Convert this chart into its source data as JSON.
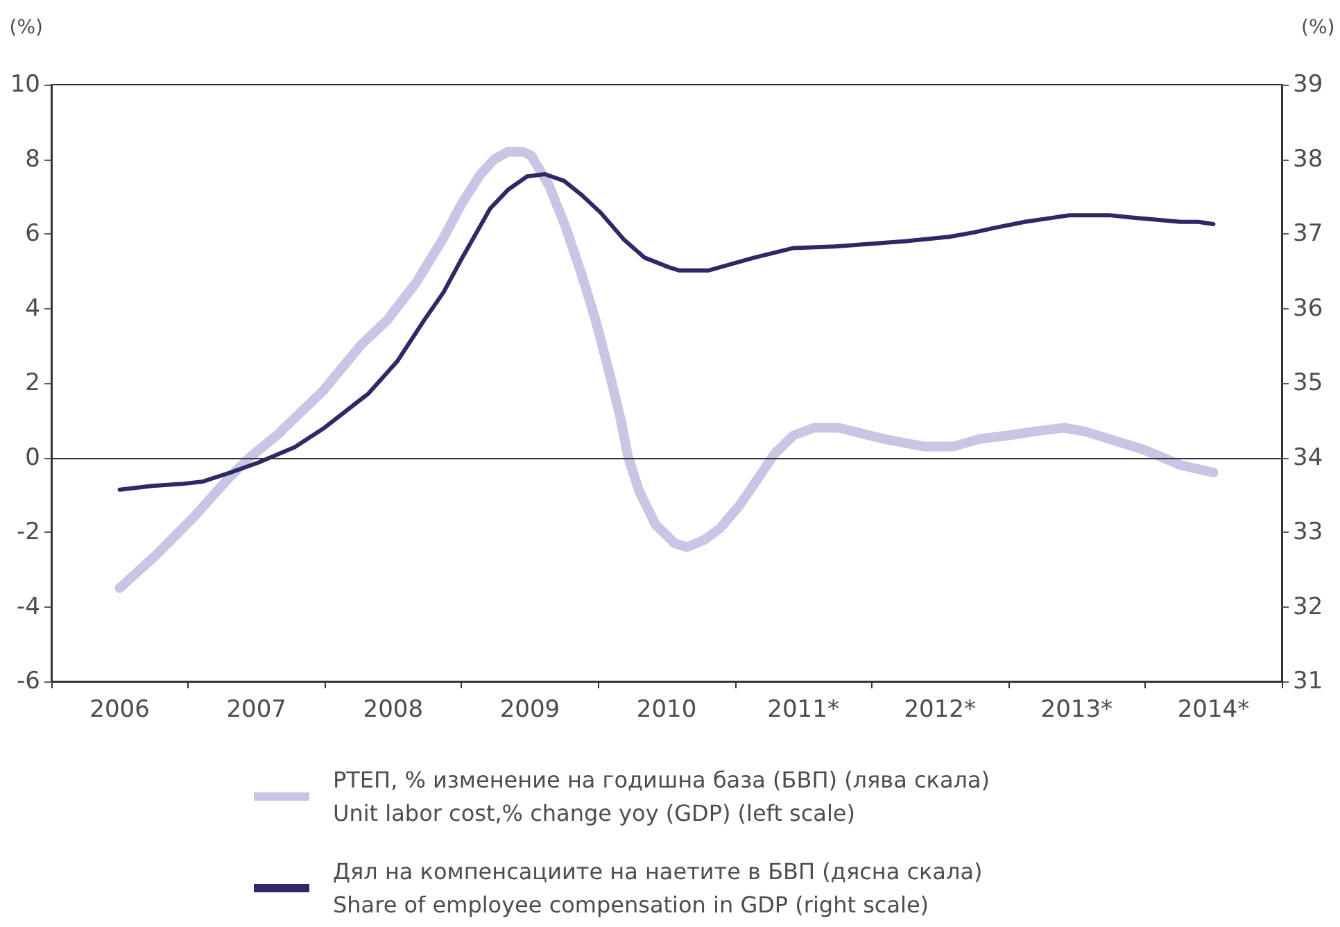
{
  "chart_data": {
    "type": "line",
    "xlim": [
      2005.5,
      2014.5
    ],
    "xticks": [
      {
        "value": 2005.5,
        "label": null
      },
      2006,
      {
        "value": 2006.5,
        "label": null
      },
      2007,
      {
        "value": 2007.5,
        "label": null
      },
      2008,
      {
        "value": 2008.5,
        "label": null
      },
      2009,
      {
        "value": 2009.5,
        "label": null
      },
      2010,
      {
        "value": 2010.5,
        "label": null
      },
      {
        "value": 2011,
        "label": "2011*"
      },
      {
        "value": 2011.5,
        "label": null
      },
      {
        "value": 2012,
        "label": "2012*"
      },
      {
        "value": 2012.5,
        "label": null
      },
      {
        "value": 2013,
        "label": "2013*"
      },
      {
        "value": 2013.5,
        "label": null
      },
      {
        "value": 2014,
        "label": "2014*"
      },
      {
        "value": 2014.5,
        "label": null
      }
    ],
    "ylabel": "(%)",
    "y2label": "(%)",
    "ylim": [
      -6,
      10
    ],
    "yticks": [
      -6,
      -4,
      -2,
      0,
      2,
      4,
      6,
      8,
      10
    ],
    "y2lim": [
      31,
      39
    ],
    "y2ticks": [
      31,
      32,
      33,
      34,
      35,
      36,
      37,
      38,
      39
    ],
    "series": [
      {
        "name": "РТЕП, % изменение на годишна база (БВП) (лява скала)\nUnit labor cost,% change yoy (GDP) (left scale)",
        "color": "#c8c6e4",
        "x": [
          2006.0,
          2006.27,
          2006.54,
          2006.81,
          2006.95,
          2007.15,
          2007.49,
          2007.76,
          2007.96,
          2008.17,
          2008.37,
          2008.5,
          2008.64,
          2008.74,
          2008.84,
          2008.95,
          2009.01,
          2009.14,
          2009.26,
          2009.38,
          2009.48,
          2009.58,
          2009.66,
          2009.72,
          2009.8,
          2009.92,
          2010.06,
          2010.15,
          2010.28,
          2010.39,
          2010.53,
          2010.68,
          2010.79,
          2010.93,
          2011.08,
          2011.26,
          2011.37,
          2011.59,
          2011.88,
          2012.1,
          2012.29,
          2012.51,
          2012.69,
          2012.91,
          2013.06,
          2013.24,
          2013.5,
          2013.76,
          2014.0
        ],
        "values": [
          -3.5,
          -2.6,
          -1.6,
          -0.5,
          0.0,
          0.6,
          1.8,
          3.0,
          3.7,
          4.7,
          5.9,
          6.8,
          7.6,
          8.0,
          8.2,
          8.2,
          8.1,
          7.3,
          6.2,
          4.9,
          3.7,
          2.3,
          1.1,
          0.0,
          -0.9,
          -1.8,
          -2.3,
          -2.4,
          -2.2,
          -1.9,
          -1.3,
          -0.5,
          0.1,
          0.6,
          0.8,
          0.8,
          0.7,
          0.5,
          0.3,
          0.3,
          0.5,
          0.6,
          0.7,
          0.8,
          0.7,
          0.5,
          0.2,
          -0.2,
          -0.4
        ]
      },
      {
        "name": "Дял на компенсациите на наетите в БВП (дясна скала)\nShare of employee compensation in GDP (right scale)",
        "color": "#2d2866",
        "axis": "y2",
        "x": [
          2006.0,
          2006.24,
          2006.47,
          2006.61,
          2006.81,
          2007.01,
          2007.28,
          2007.49,
          2007.82,
          2008.03,
          2008.23,
          2008.37,
          2008.5,
          2008.71,
          2008.84,
          2008.98,
          2009.11,
          2009.25,
          2009.38,
          2009.52,
          2009.69,
          2009.84,
          2010.02,
          2010.09,
          2010.31,
          2010.64,
          2010.93,
          2011.23,
          2011.52,
          2011.74,
          2012.07,
          2012.25,
          2012.4,
          2012.62,
          2012.84,
          2012.95,
          2013.24,
          2013.39,
          2013.76,
          2013.89,
          2014.0
        ],
        "values": [
          33.57,
          33.62,
          33.65,
          33.68,
          33.8,
          33.93,
          34.14,
          34.39,
          34.86,
          35.29,
          35.85,
          36.22,
          36.66,
          37.34,
          37.59,
          37.77,
          37.8,
          37.71,
          37.52,
          37.28,
          36.92,
          36.68,
          36.55,
          36.51,
          36.51,
          36.68,
          36.81,
          36.83,
          36.87,
          36.9,
          36.96,
          37.02,
          37.08,
          37.16,
          37.22,
          37.25,
          37.25,
          37.22,
          37.16,
          37.16,
          37.13
        ]
      }
    ],
    "ref_lines": [
      {
        "axis": "y",
        "value": 0,
        "color": "#333333"
      }
    ],
    "marker": "none",
    "legend": "bottom"
  }
}
